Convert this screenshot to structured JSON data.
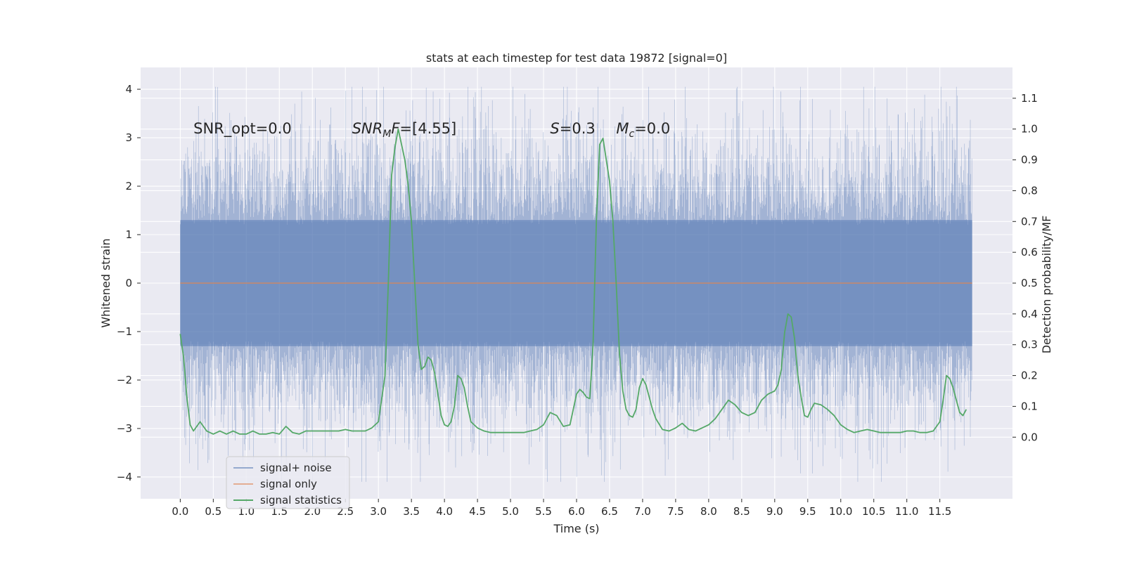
{
  "chart_data": {
    "type": "line",
    "title": "stats at each timestep for test data 19872 [signal=0]",
    "xlabel": "Time (s)",
    "ylabel": "Whitened strain",
    "ylabel_right": "Detection probability/MF",
    "xlim": [
      -0.6,
      12.6
    ],
    "ylim": [
      -4.45,
      4.45
    ],
    "ylim_right": [
      -0.2,
      1.2
    ],
    "x_ticks": [
      0.0,
      0.5,
      1.0,
      1.5,
      2.0,
      2.5,
      3.0,
      3.5,
      4.0,
      4.5,
      5.0,
      5.5,
      6.0,
      6.5,
      7.0,
      7.5,
      8.0,
      8.5,
      9.0,
      9.5,
      10.0,
      10.5,
      11.0,
      11.5
    ],
    "x_tick_labels": [
      "0.0",
      "0.5",
      "1.0",
      "1.5",
      "2.0",
      "2.5",
      "3.0",
      "3.5",
      "4.0",
      "4.5",
      "5.0",
      "5.5",
      "6.0",
      "6.5",
      "7.0",
      "7.5",
      "8.0",
      "8.5",
      "9.0",
      "9.5",
      "10.0",
      "10.5",
      "11.0",
      "11.5"
    ],
    "y_ticks": [
      -4,
      -3,
      -2,
      -1,
      0,
      1,
      2,
      3,
      4
    ],
    "y_tick_labels": [
      "−4",
      "−3",
      "−2",
      "−1",
      "0",
      "1",
      "2",
      "3",
      "4"
    ],
    "y_right_ticks": [
      0.0,
      0.1,
      0.2,
      0.3,
      0.4,
      0.5,
      0.6,
      0.7,
      0.8,
      0.9,
      1.0,
      1.1
    ],
    "y_right_tick_labels": [
      "0.0",
      "0.1",
      "0.2",
      "0.3",
      "0.4",
      "0.5",
      "0.6",
      "0.7",
      "0.8",
      "0.9",
      "1.0",
      "1.1"
    ],
    "grid": true,
    "annotations": [
      {
        "text": "SNR_opt=0.0",
        "x": 0.2,
        "y": 3.2
      },
      {
        "text": "SNR_MF=[4.55]",
        "x": 2.6,
        "y": 3.2
      },
      {
        "text": "S=0.3",
        "x": 5.6,
        "y": 3.2
      },
      {
        "text": "M_c=0.0",
        "x": 6.6,
        "y": 3.2
      }
    ],
    "series": [
      {
        "name": "signal+ noise",
        "axis": "left",
        "color": "#4c72b0",
        "style": "dense noise trace",
        "x_range": [
          0.0,
          11.99
        ],
        "core_band": [
          -1.3,
          1.3
        ],
        "typical_extremes": [
          -3.0,
          3.0
        ],
        "peak_max": 4.05,
        "peak_min": -4.1
      },
      {
        "name": "signal only",
        "axis": "left",
        "color": "#dd8452",
        "x": [
          0.0,
          11.99
        ],
        "y": [
          0.0,
          0.0
        ]
      },
      {
        "name": "signal statistics",
        "axis": "right",
        "color": "#55a868",
        "x": [
          0.0,
          0.05,
          0.1,
          0.15,
          0.2,
          0.3,
          0.4,
          0.5,
          0.6,
          0.7,
          0.8,
          0.9,
          1.0,
          1.1,
          1.2,
          1.3,
          1.4,
          1.5,
          1.6,
          1.7,
          1.8,
          1.9,
          2.0,
          2.1,
          2.2,
          2.3,
          2.4,
          2.5,
          2.6,
          2.7,
          2.8,
          2.9,
          3.0,
          3.1,
          3.15,
          3.2,
          3.25,
          3.3,
          3.35,
          3.4,
          3.45,
          3.5,
          3.55,
          3.6,
          3.65,
          3.7,
          3.75,
          3.8,
          3.85,
          3.9,
          3.95,
          4.0,
          4.05,
          4.1,
          4.15,
          4.2,
          4.25,
          4.3,
          4.35,
          4.4,
          4.5,
          4.6,
          4.7,
          4.8,
          4.9,
          5.0,
          5.1,
          5.2,
          5.3,
          5.4,
          5.5,
          5.6,
          5.7,
          5.8,
          5.9,
          6.0,
          6.05,
          6.1,
          6.15,
          6.2,
          6.25,
          6.3,
          6.35,
          6.4,
          6.45,
          6.5,
          6.55,
          6.6,
          6.65,
          6.7,
          6.75,
          6.8,
          6.85,
          6.9,
          6.95,
          7.0,
          7.05,
          7.1,
          7.15,
          7.2,
          7.3,
          7.4,
          7.5,
          7.6,
          7.7,
          7.8,
          7.9,
          8.0,
          8.1,
          8.2,
          8.3,
          8.4,
          8.5,
          8.6,
          8.7,
          8.8,
          8.9,
          9.0,
          9.05,
          9.1,
          9.15,
          9.2,
          9.25,
          9.3,
          9.35,
          9.4,
          9.45,
          9.5,
          9.55,
          9.6,
          9.7,
          9.8,
          9.9,
          10.0,
          10.1,
          10.2,
          10.3,
          10.4,
          10.5,
          10.6,
          10.7,
          10.8,
          10.9,
          11.0,
          11.1,
          11.2,
          11.3,
          11.4,
          11.5,
          11.55,
          11.6,
          11.65,
          11.7,
          11.75,
          11.8,
          11.85,
          11.9
        ],
        "y": [
          0.335,
          0.26,
          0.13,
          0.04,
          0.02,
          0.05,
          0.02,
          0.01,
          0.02,
          0.01,
          0.02,
          0.01,
          0.01,
          0.02,
          0.01,
          0.01,
          0.015,
          0.01,
          0.035,
          0.015,
          0.01,
          0.02,
          0.02,
          0.02,
          0.02,
          0.02,
          0.02,
          0.025,
          0.02,
          0.02,
          0.02,
          0.03,
          0.05,
          0.2,
          0.5,
          0.85,
          0.94,
          1.0,
          0.95,
          0.9,
          0.82,
          0.7,
          0.5,
          0.3,
          0.22,
          0.23,
          0.26,
          0.25,
          0.21,
          0.14,
          0.07,
          0.04,
          0.035,
          0.05,
          0.1,
          0.2,
          0.19,
          0.16,
          0.1,
          0.05,
          0.03,
          0.02,
          0.015,
          0.015,
          0.015,
          0.015,
          0.015,
          0.015,
          0.02,
          0.025,
          0.04,
          0.08,
          0.07,
          0.035,
          0.04,
          0.14,
          0.155,
          0.145,
          0.13,
          0.125,
          0.3,
          0.7,
          0.95,
          0.97,
          0.9,
          0.83,
          0.7,
          0.5,
          0.27,
          0.15,
          0.09,
          0.07,
          0.065,
          0.09,
          0.16,
          0.19,
          0.17,
          0.13,
          0.09,
          0.06,
          0.025,
          0.02,
          0.03,
          0.045,
          0.025,
          0.02,
          0.03,
          0.04,
          0.06,
          0.09,
          0.12,
          0.105,
          0.08,
          0.07,
          0.08,
          0.12,
          0.14,
          0.15,
          0.17,
          0.22,
          0.34,
          0.4,
          0.39,
          0.32,
          0.2,
          0.13,
          0.07,
          0.065,
          0.09,
          0.11,
          0.105,
          0.09,
          0.07,
          0.04,
          0.025,
          0.015,
          0.02,
          0.025,
          0.02,
          0.015,
          0.015,
          0.015,
          0.015,
          0.02,
          0.02,
          0.015,
          0.015,
          0.02,
          0.05,
          0.12,
          0.2,
          0.19,
          0.16,
          0.12,
          0.08,
          0.07,
          0.09
        ]
      }
    ],
    "legend": {
      "position": "lower-left",
      "entries": [
        "signal+ noise",
        "signal only",
        "signal statistics"
      ]
    }
  }
}
